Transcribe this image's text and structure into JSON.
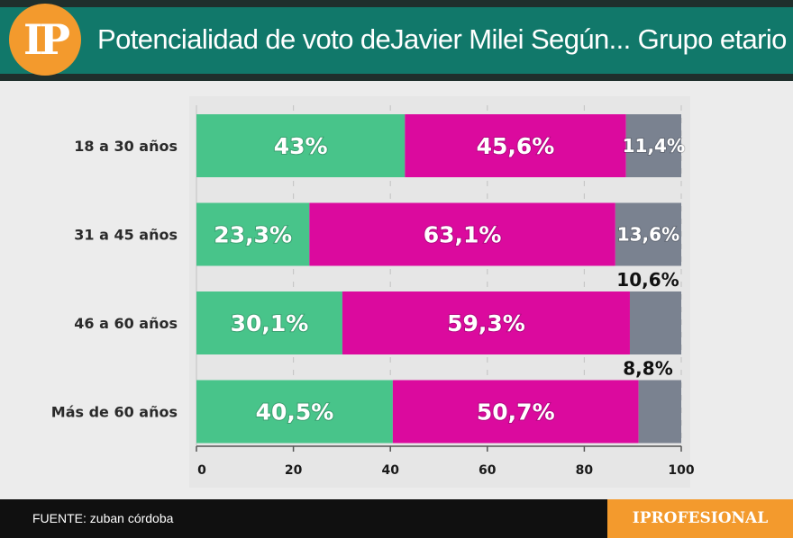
{
  "header": {
    "logo_text": "IP",
    "title": "Potencialidad de voto deJavier Milei Según... Grupo etario"
  },
  "footer": {
    "source": "FUENTE: zuban córdoba",
    "brand": "IPROFESIONAL"
  },
  "colors": {
    "header_band": "#11786a",
    "logo": "#f39a2d",
    "green": "#48c48a",
    "magenta": "#db0a9e",
    "gray": "#7a8290"
  },
  "chart_data": {
    "type": "bar",
    "orientation": "horizontal",
    "stacked": true,
    "title": "Potencialidad de voto deJavier Milei Según... Grupo etario",
    "categories": [
      "18 a 30 años",
      "31 a 45 años",
      "46 a 60 años",
      "Más de 60 años"
    ],
    "series": [
      {
        "values": [
          43,
          23.3,
          30.1,
          40.5
        ],
        "labels": [
          "43%",
          "23,3%",
          "30,1%",
          "40,5%"
        ],
        "color": "#48c48a"
      },
      {
        "values": [
          45.6,
          63.1,
          59.3,
          50.7
        ],
        "labels": [
          "45,6%",
          "63,1%",
          "59,3%",
          "50,7%"
        ],
        "color": "#db0a9e"
      },
      {
        "values": [
          11.4,
          13.6,
          10.6,
          8.8
        ],
        "labels": [
          "11,4%",
          "13,6%",
          "10,6%",
          "8,8%"
        ],
        "color": "#7a8290"
      }
    ],
    "xlim": [
      0,
      100
    ],
    "xticks": [
      0,
      20,
      40,
      60,
      80,
      100
    ],
    "xlabel": "",
    "ylabel": "",
    "grid": true,
    "legend": "none"
  }
}
